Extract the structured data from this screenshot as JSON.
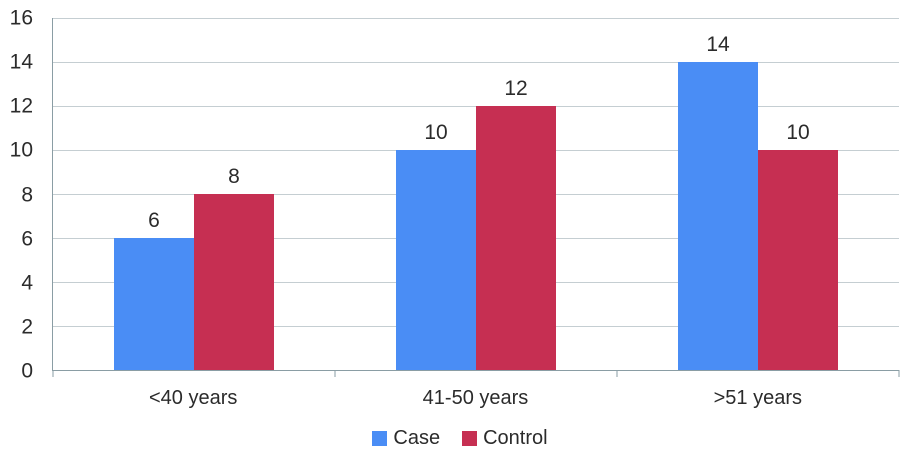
{
  "chart_data": {
    "type": "bar",
    "title": "",
    "xlabel": "",
    "ylabel": "",
    "categories": [
      "<40 years",
      "41-50 years",
      ">51 years"
    ],
    "series": [
      {
        "name": "Case",
        "color": "#4a8df5",
        "values": [
          6,
          10,
          14
        ]
      },
      {
        "name": "Control",
        "color": "#c62f52",
        "values": [
          8,
          12,
          10
        ]
      }
    ],
    "ylim": [
      0,
      16
    ],
    "yticks": [
      0,
      2,
      4,
      6,
      8,
      10,
      12,
      14,
      16
    ],
    "grid": true,
    "bar_value_labels": true,
    "legend_position": "bottom",
    "colors": {
      "axis_line": "#8a9da4",
      "gridline": "#c5ced2",
      "text": "#2b2b2b",
      "background": "#ffffff"
    }
  }
}
